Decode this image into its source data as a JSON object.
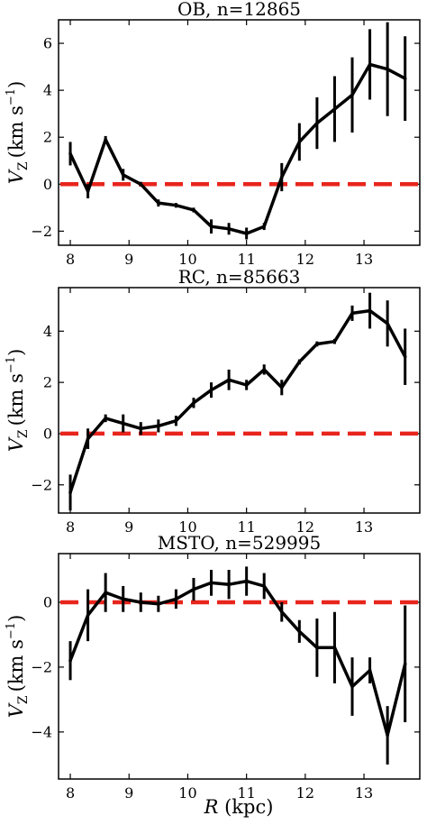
{
  "xlabel": "R (kpc)",
  "chart_data": [
    {
      "type": "line",
      "title": "OB, n=12865",
      "ylabel": "V_Z (km s^-1)",
      "xlim": [
        7.8,
        13.95
      ],
      "ylim": [
        -2.6,
        7.0
      ],
      "xticks": [
        8,
        9,
        10,
        11,
        12,
        13
      ],
      "yticks": [
        -2,
        0,
        2,
        4,
        6
      ],
      "x": [
        8.0,
        8.3,
        8.6,
        8.9,
        9.2,
        9.5,
        9.8,
        10.1,
        10.4,
        10.7,
        11.0,
        11.3,
        11.6,
        11.9,
        12.2,
        12.5,
        12.8,
        13.1,
        13.4,
        13.7
      ],
      "y": [
        1.3,
        -0.3,
        1.9,
        0.4,
        0.0,
        -0.8,
        -0.9,
        -1.1,
        -1.8,
        -1.9,
        -2.1,
        -1.8,
        0.3,
        1.8,
        2.6,
        3.2,
        3.8,
        5.1,
        4.9,
        4.5
      ],
      "yerr": [
        0.5,
        0.3,
        0.15,
        0.25,
        0.1,
        0.15,
        0.1,
        0.1,
        0.3,
        0.25,
        0.25,
        0.15,
        0.6,
        0.8,
        1.1,
        1.4,
        1.6,
        1.5,
        2.0,
        1.8
      ],
      "reference_line": 0
    },
    {
      "type": "line",
      "title": "RC, n=85663",
      "ylabel": "V_Z (km s^-1)",
      "xlim": [
        7.8,
        13.95
      ],
      "ylim": [
        -3.1,
        5.7
      ],
      "xticks": [
        8,
        9,
        10,
        11,
        12,
        13
      ],
      "yticks": [
        -2,
        0,
        2,
        4
      ],
      "x": [
        8.0,
        8.3,
        8.6,
        8.9,
        9.2,
        9.5,
        9.8,
        10.1,
        10.4,
        10.7,
        11.0,
        11.3,
        11.6,
        11.9,
        12.2,
        12.5,
        12.8,
        13.1,
        13.4,
        13.7
      ],
      "y": [
        -2.3,
        -0.2,
        0.6,
        0.4,
        0.2,
        0.3,
        0.5,
        1.2,
        1.7,
        2.1,
        1.9,
        2.5,
        1.8,
        2.8,
        3.5,
        3.6,
        4.7,
        4.8,
        4.3,
        3.0
      ],
      "yerr": [
        0.7,
        0.4,
        0.15,
        0.35,
        0.25,
        0.25,
        0.2,
        0.2,
        0.3,
        0.4,
        0.2,
        0.2,
        0.3,
        0.1,
        0.1,
        0.1,
        0.3,
        0.7,
        0.9,
        1.1
      ],
      "reference_line": 0
    },
    {
      "type": "line",
      "title": "MSTO, n=529995",
      "ylabel": "V_Z (km s^-1)",
      "xlim": [
        7.8,
        13.95
      ],
      "ylim": [
        -5.45,
        1.5
      ],
      "xticks": [
        8,
        9,
        10,
        11,
        12,
        13
      ],
      "yticks": [
        -4,
        -2,
        0
      ],
      "x": [
        8.0,
        8.3,
        8.6,
        8.9,
        9.2,
        9.5,
        9.8,
        10.1,
        10.4,
        10.7,
        11.0,
        11.3,
        11.6,
        11.9,
        12.2,
        12.5,
        12.8,
        13.1,
        13.4,
        13.7
      ],
      "y": [
        -1.8,
        -0.4,
        0.3,
        0.1,
        0.0,
        -0.05,
        0.1,
        0.4,
        0.6,
        0.55,
        0.65,
        0.5,
        -0.3,
        -0.9,
        -1.4,
        -1.4,
        -2.6,
        -2.1,
        -4.1,
        -1.9
      ],
      "yerr": [
        0.6,
        0.8,
        0.6,
        0.4,
        0.3,
        0.25,
        0.3,
        0.35,
        0.4,
        0.45,
        0.45,
        0.4,
        0.3,
        0.35,
        0.9,
        1.1,
        0.9,
        0.4,
        0.9,
        1.8
      ],
      "reference_line": 0
    }
  ]
}
